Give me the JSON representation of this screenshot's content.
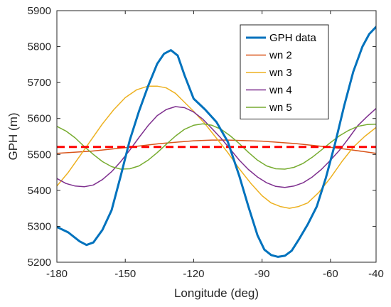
{
  "chart_data": {
    "type": "line",
    "xlabel": "Longitude (deg)",
    "ylabel": "GPH (m)",
    "xlim": [
      -180,
      -40
    ],
    "ylim": [
      5200,
      5900
    ],
    "xticks": [
      -180,
      -150,
      -120,
      -90,
      -60,
      -40
    ],
    "yticks": [
      5200,
      5300,
      5400,
      5500,
      5600,
      5700,
      5800,
      5900
    ],
    "grid": false,
    "legend_position": "top-right",
    "series": [
      {
        "name": "GPH data",
        "color": "#0072BD",
        "style": "solid-thick",
        "x": [
          -180,
          -175,
          -170,
          -167,
          -164,
          -160,
          -156,
          -152,
          -148,
          -144,
          -140,
          -136,
          -133,
          -130,
          -127,
          -124,
          -120,
          -115,
          -110,
          -105,
          -100,
          -96,
          -92,
          -89,
          -86,
          -83,
          -80,
          -77,
          -74,
          -70,
          -66,
          -62,
          -58,
          -54,
          -50,
          -46,
          -43,
          -40
        ],
        "y": [
          5298,
          5283,
          5258,
          5248,
          5255,
          5290,
          5345,
          5440,
          5540,
          5620,
          5690,
          5752,
          5780,
          5790,
          5775,
          5720,
          5655,
          5625,
          5590,
          5535,
          5440,
          5355,
          5275,
          5235,
          5220,
          5215,
          5218,
          5232,
          5262,
          5305,
          5355,
          5435,
          5530,
          5635,
          5730,
          5800,
          5835,
          5855
        ]
      },
      {
        "name": "wn 2",
        "color": "#D95319",
        "style": "solid",
        "x": [
          -180,
          -165,
          -150,
          -135,
          -120,
          -112,
          -105,
          -90,
          -75,
          -60,
          -50,
          -40
        ],
        "y": [
          5503,
          5509,
          5519,
          5530,
          5538,
          5540,
          5540,
          5537,
          5530,
          5520,
          5512,
          5503
        ]
      },
      {
        "name": "wn 3",
        "color": "#EDB120",
        "style": "solid",
        "x": [
          -180,
          -175,
          -170,
          -165,
          -160,
          -155,
          -150,
          -145,
          -140,
          -136,
          -132,
          -128,
          -124,
          -120,
          -115,
          -110,
          -105,
          -100,
          -95,
          -90,
          -86,
          -82,
          -78,
          -74,
          -70,
          -65,
          -60,
          -55,
          -50,
          -45,
          -40
        ],
        "y": [
          5412,
          5450,
          5495,
          5540,
          5585,
          5625,
          5658,
          5680,
          5690,
          5690,
          5685,
          5670,
          5645,
          5620,
          5585,
          5545,
          5505,
          5460,
          5420,
          5385,
          5365,
          5355,
          5350,
          5355,
          5365,
          5395,
          5435,
          5480,
          5520,
          5550,
          5575
        ]
      },
      {
        "name": "wn 4",
        "color": "#7E2F8E",
        "style": "solid",
        "x": [
          -180,
          -176,
          -172,
          -168,
          -164,
          -160,
          -156,
          -152,
          -148,
          -144,
          -140,
          -136,
          -132,
          -128,
          -124,
          -120,
          -116,
          -112,
          -108,
          -104,
          -100,
          -96,
          -92,
          -88,
          -84,
          -80,
          -76,
          -72,
          -68,
          -64,
          -60,
          -56,
          -52,
          -48,
          -44,
          -40
        ],
        "y": [
          5433,
          5419,
          5412,
          5410,
          5415,
          5430,
          5452,
          5480,
          5512,
          5547,
          5580,
          5608,
          5625,
          5633,
          5630,
          5618,
          5598,
          5572,
          5545,
          5515,
          5484,
          5458,
          5437,
          5421,
          5411,
          5408,
          5412,
          5421,
          5437,
          5458,
          5484,
          5512,
          5545,
          5580,
          5605,
          5628
        ]
      },
      {
        "name": "wn 5",
        "color": "#77AC30",
        "style": "solid",
        "x": [
          -180,
          -176,
          -172,
          -168,
          -164,
          -160,
          -156,
          -152,
          -148,
          -144,
          -140,
          -136,
          -132,
          -128,
          -124,
          -120,
          -116,
          -112,
          -108,
          -104,
          -100,
          -96,
          -92,
          -88,
          -84,
          -80,
          -76,
          -72,
          -68,
          -64,
          -60,
          -56,
          -52,
          -48,
          -44,
          -40
        ],
        "y": [
          5578,
          5565,
          5546,
          5522,
          5500,
          5480,
          5466,
          5459,
          5460,
          5468,
          5484,
          5505,
          5528,
          5551,
          5570,
          5581,
          5585,
          5581,
          5570,
          5552,
          5530,
          5506,
          5484,
          5468,
          5460,
          5459,
          5464,
          5475,
          5492,
          5512,
          5533,
          5552,
          5567,
          5578,
          5583,
          5584
        ]
      },
      {
        "color": "#FF0000",
        "style": "dashed",
        "x": [
          -180,
          -40
        ],
        "y": [
          5521,
          5521
        ]
      }
    ]
  }
}
